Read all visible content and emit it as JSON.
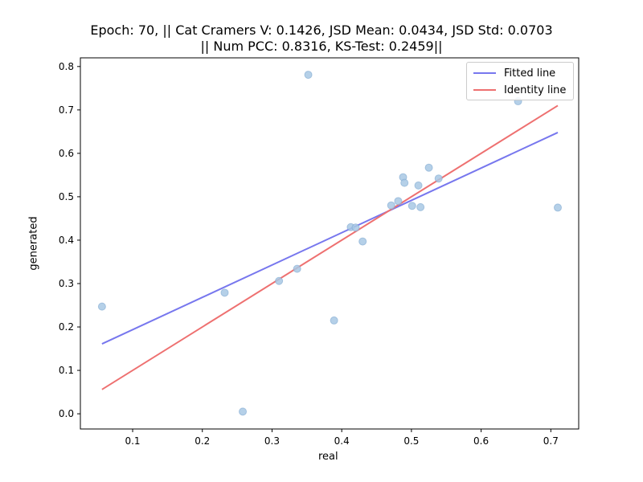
{
  "chart_data": {
    "type": "scatter",
    "title_lines": [
      "Epoch: 70, || Cat Cramers V: 0.1426, JSD Mean: 0.0434, JSD Std: 0.0703",
      "|| Num PCC: 0.8316, KS-Test: 0.2459||"
    ],
    "xlabel": "real",
    "ylabel": "generated",
    "xlim": [
      0.025,
      0.74
    ],
    "ylim": [
      -0.035,
      0.82
    ],
    "xticks": [
      0.1,
      0.2,
      0.3,
      0.4,
      0.5,
      0.6,
      0.7
    ],
    "yticks": [
      0.0,
      0.1,
      0.2,
      0.3,
      0.4,
      0.5,
      0.6,
      0.7,
      0.8
    ],
    "grid": false,
    "legend_position": "top-right",
    "points": [
      {
        "x": 0.056,
        "y": 0.247
      },
      {
        "x": 0.232,
        "y": 0.279
      },
      {
        "x": 0.258,
        "y": 0.005
      },
      {
        "x": 0.31,
        "y": 0.306
      },
      {
        "x": 0.336,
        "y": 0.334
      },
      {
        "x": 0.352,
        "y": 0.781
      },
      {
        "x": 0.389,
        "y": 0.215
      },
      {
        "x": 0.413,
        "y": 0.43
      },
      {
        "x": 0.42,
        "y": 0.429
      },
      {
        "x": 0.43,
        "y": 0.397
      },
      {
        "x": 0.471,
        "y": 0.48
      },
      {
        "x": 0.481,
        "y": 0.49
      },
      {
        "x": 0.488,
        "y": 0.545
      },
      {
        "x": 0.49,
        "y": 0.532
      },
      {
        "x": 0.501,
        "y": 0.479
      },
      {
        "x": 0.51,
        "y": 0.526
      },
      {
        "x": 0.513,
        "y": 0.476
      },
      {
        "x": 0.525,
        "y": 0.567
      },
      {
        "x": 0.539,
        "y": 0.542
      },
      {
        "x": 0.653,
        "y": 0.72
      },
      {
        "x": 0.71,
        "y": 0.475
      }
    ],
    "series": [
      {
        "name": "Fitted line",
        "color": "#7777ee",
        "x": [
          0.056,
          0.71
        ],
        "y": [
          0.161,
          0.648
        ]
      },
      {
        "name": "Identity line",
        "color": "#ee7070",
        "x": [
          0.056,
          0.71
        ],
        "y": [
          0.056,
          0.71
        ]
      }
    ],
    "point_color": "#a8c8e4"
  }
}
